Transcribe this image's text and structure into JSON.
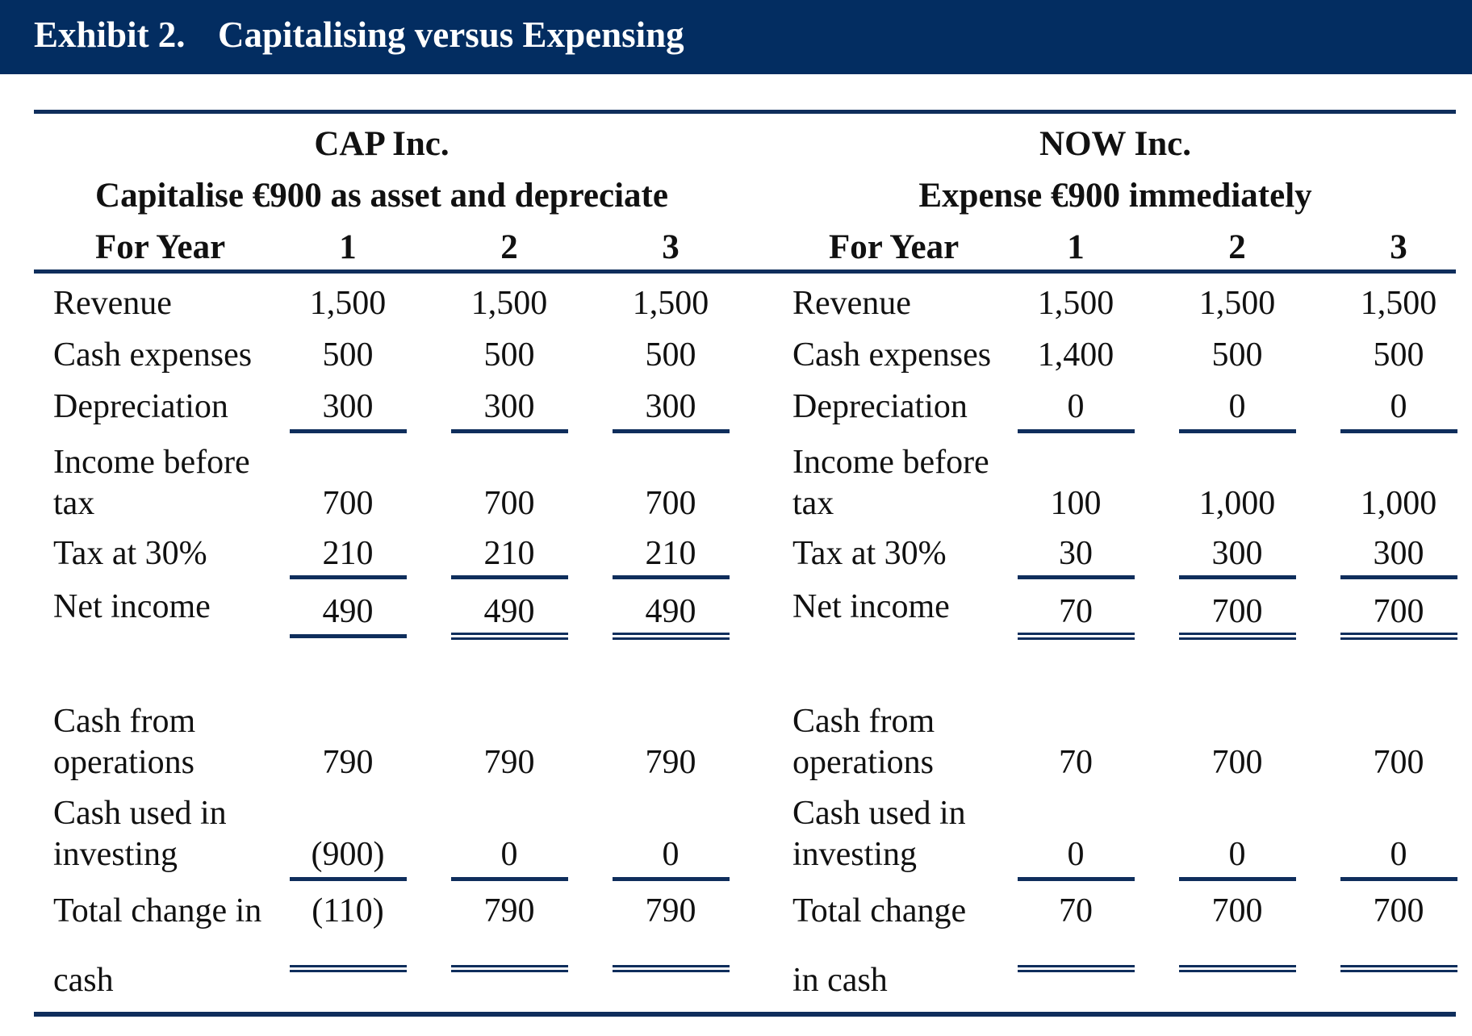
{
  "exhibit": {
    "label": "Exhibit 2.",
    "title": "Capitalising versus Expensing"
  },
  "colors": {
    "header_bg": "#032d61",
    "rule": "#0f2e5c",
    "header_text": "#ffffff"
  },
  "cap": {
    "company": "CAP Inc.",
    "method": "Capitalise €900 as asset and depreciate",
    "year_label": "For Year",
    "years": [
      "1",
      "2",
      "3"
    ],
    "rows": [
      {
        "label_lines": [
          "Revenue"
        ],
        "values": [
          "1,500",
          "1,500",
          "1,500"
        ]
      },
      {
        "label_lines": [
          "Cash expenses"
        ],
        "values": [
          "500",
          "500",
          "500"
        ]
      },
      {
        "label_lines": [
          "Depreciation"
        ],
        "values": [
          "300",
          "300",
          "300"
        ]
      },
      {
        "label_lines": [
          "Income before",
          "tax"
        ],
        "values": [
          "700",
          "700",
          "700"
        ]
      },
      {
        "label_lines": [
          "Tax at 30%"
        ],
        "values": [
          "210",
          "210",
          "210"
        ]
      },
      {
        "label_lines": [
          "Net income"
        ],
        "values": [
          "490",
          "490",
          "490"
        ]
      },
      {
        "label_lines": [
          "Cash from",
          "operations"
        ],
        "values": [
          "790",
          "790",
          "790"
        ]
      },
      {
        "label_lines": [
          "Cash used in",
          "investing"
        ],
        "values": [
          "(900)",
          "0",
          "0"
        ]
      },
      {
        "label_lines": [
          "Total change in",
          "cash"
        ],
        "values": [
          "(110)",
          "790",
          "790"
        ]
      }
    ]
  },
  "now": {
    "company": "NOW Inc.",
    "method": "Expense €900 immediately",
    "year_label": "For Year",
    "years": [
      "1",
      "2",
      "3"
    ],
    "rows": [
      {
        "label_lines": [
          "Revenue"
        ],
        "values": [
          "1,500",
          "1,500",
          "1,500"
        ]
      },
      {
        "label_lines": [
          "Cash expenses"
        ],
        "values": [
          "1,400",
          "500",
          "500"
        ]
      },
      {
        "label_lines": [
          "Depreciation"
        ],
        "values": [
          "0",
          "0",
          "0"
        ]
      },
      {
        "label_lines": [
          "Income before",
          "tax"
        ],
        "values": [
          "100",
          "1,000",
          "1,000"
        ]
      },
      {
        "label_lines": [
          "Tax at 30%"
        ],
        "values": [
          "30",
          "300",
          "300"
        ]
      },
      {
        "label_lines": [
          "Net income"
        ],
        "values": [
          "70",
          "700",
          "700"
        ]
      },
      {
        "label_lines": [
          "Cash from",
          "operations"
        ],
        "values": [
          "70",
          "700",
          "700"
        ]
      },
      {
        "label_lines": [
          "Cash used in",
          "investing"
        ],
        "values": [
          "0",
          "0",
          "0"
        ]
      },
      {
        "label_lines": [
          "Total change",
          "in cash"
        ],
        "values": [
          "70",
          "700",
          "700"
        ]
      }
    ]
  }
}
